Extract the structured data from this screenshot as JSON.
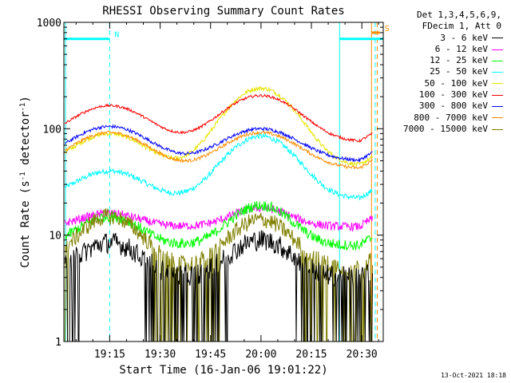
{
  "chart_data": {
    "type": "line",
    "title": "RHESSI Observing Summary Count Rates",
    "xlabel": "Start Time (16-Jan-06 19:01:22)",
    "ylabel_main": "Count Rate (s",
    "ylabel_exp1": "-1",
    "ylabel_mid": " detector",
    "ylabel_exp2": "-1",
    "ylabel_end": ")",
    "y_scale": "log",
    "ylim": [
      1,
      1000
    ],
    "xlim_minutes": [
      0,
      95
    ],
    "y_ticks": [
      {
        "v": 1,
        "label": "1"
      },
      {
        "v": 10,
        "label": "10"
      },
      {
        "v": 100,
        "label": "100"
      },
      {
        "v": 1000,
        "label": "1000"
      }
    ],
    "x_ticks": [
      {
        "t": 13.633,
        "label": "19:15"
      },
      {
        "t": 28.633,
        "label": "19:30"
      },
      {
        "t": 43.633,
        "label": "19:45"
      },
      {
        "t": 58.633,
        "label": "20:00"
      },
      {
        "t": 73.633,
        "label": "20:15"
      },
      {
        "t": 88.633,
        "label": "20:30"
      }
    ],
    "legend_header": [
      "Det 1,3,4,5,6,9,",
      "FDecim 1, Att 0"
    ],
    "series": [
      {
        "name": "3 - 6 keV",
        "color": "#000000",
        "base": 4,
        "peaks": [
          [
            13.6,
            8.5
          ],
          [
            58.5,
            9
          ]
        ],
        "width": 8,
        "noise": 0.1,
        "dropouts": true
      },
      {
        "name": "6 - 12 keV",
        "color": "#ff00ff",
        "base": 12,
        "peaks": [
          [
            13.6,
            16
          ],
          [
            58.5,
            18
          ]
        ],
        "width": 8,
        "noise": 0.04
      },
      {
        "name": "12 - 25 keV",
        "color": "#00ff00",
        "base": 8,
        "peaks": [
          [
            13.6,
            15
          ],
          [
            58.5,
            19
          ]
        ],
        "width": 8,
        "noise": 0.05
      },
      {
        "name": "25 - 50 keV",
        "color": "#00ffff",
        "base": 22,
        "peaks": [
          [
            13.6,
            40
          ],
          [
            58.5,
            85
          ]
        ],
        "width": 9,
        "noise": 0.025
      },
      {
        "name": "50 - 100 keV",
        "color": "#e5e500",
        "base": 45,
        "peaks": [
          [
            13.6,
            90
          ],
          [
            58.5,
            240
          ]
        ],
        "width": 9,
        "noise": 0.02
      },
      {
        "name": "100 - 300 keV",
        "color": "#ff0000",
        "base": 75,
        "peaks": [
          [
            13.6,
            165
          ],
          [
            58.5,
            205
          ]
        ],
        "width": 10,
        "noise": 0.012
      },
      {
        "name": "300 - 800 keV",
        "color": "#0000ff",
        "base": 50,
        "peaks": [
          [
            13.6,
            105
          ],
          [
            58.5,
            100
          ]
        ],
        "width": 10,
        "noise": 0.015
      },
      {
        "name": "800 - 7000 keV",
        "color": "#ff8c00",
        "base": 42,
        "peaks": [
          [
            13.6,
            92
          ],
          [
            58.5,
            92
          ]
        ],
        "width": 10,
        "noise": 0.015
      },
      {
        "name": "7000 - 15000 keV",
        "color": "#808000",
        "base": 5,
        "peaks": [
          [
            13.6,
            15
          ],
          [
            58.5,
            14
          ]
        ],
        "width": 8,
        "noise": 0.08,
        "dropouts": true
      }
    ],
    "flags": [
      {
        "label": "N",
        "color": "#00ffff",
        "start": 0,
        "end": 13.6,
        "level": 700
      },
      {
        "label": "",
        "color": "#00ffff",
        "start": 82,
        "end": 95,
        "level": 700
      },
      {
        "label": "S",
        "color": "#ff8c00",
        "start": 91.5,
        "end": 94,
        "level": 800
      }
    ],
    "vlines": [
      {
        "t": 0.5,
        "color": "#00ffff",
        "style": "solid"
      },
      {
        "t": 13.6,
        "color": "#00ffff",
        "style": "dashed"
      },
      {
        "t": 82,
        "color": "#00ffff",
        "style": "solid"
      },
      {
        "t": 91.5,
        "color": "#ff8c00",
        "style": "solid"
      },
      {
        "t": 92.6,
        "color": "#00ffff",
        "style": "dashed"
      },
      {
        "t": 93.2,
        "color": "#ff8c00",
        "style": "dashed"
      }
    ]
  },
  "timestamp": "13-Oct-2021 18:18"
}
